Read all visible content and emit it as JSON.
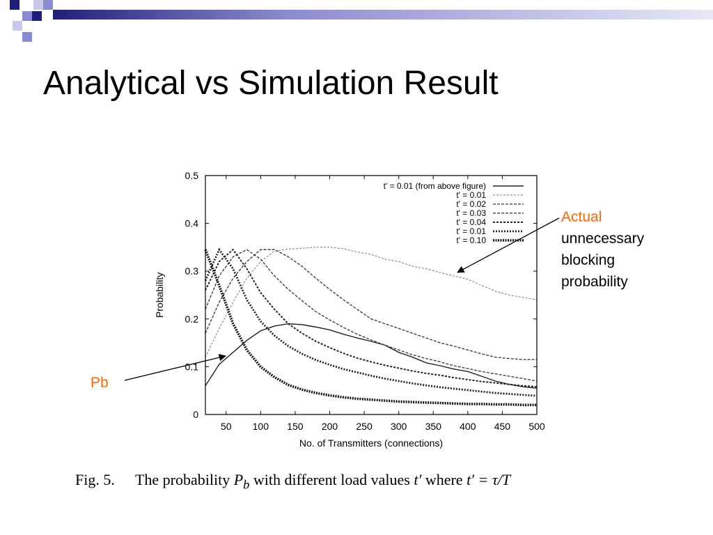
{
  "slide": {
    "title": "Analytical vs Simulation Result",
    "accent_colors": [
      "#1f1f7a",
      "#8a8ad0",
      "#c8c8e8",
      "#e8e8f6"
    ]
  },
  "annotations": {
    "actual_word": "Actual",
    "actual_rest": [
      "unnecessary",
      "blocking",
      "probability"
    ],
    "pb": "Pb",
    "accent_color": "#ff6600"
  },
  "caption": {
    "fig_label": "Fig. 5.",
    "text_before": "The probability",
    "symbol_p": "P",
    "symbol_sub": "b",
    "text_mid": "with different load values",
    "symbol_t": "t′",
    "text_where": "where",
    "equation": "t′ = τ/T"
  },
  "chart_data": {
    "type": "line",
    "title": "",
    "xlabel": "No. of Transmitters (connections)",
    "ylabel": "Probability",
    "xlim": [
      20,
      500
    ],
    "ylim": [
      0,
      0.5
    ],
    "xticks": [
      50,
      100,
      150,
      200,
      250,
      300,
      350,
      400,
      450,
      500
    ],
    "yticks": [
      0,
      0.1,
      0.2,
      0.3,
      0.4,
      0.5
    ],
    "ytick_labels": [
      "0",
      "0.1",
      "0.2",
      "0.3",
      "0.4",
      "0.5"
    ],
    "legend_position": "top-right",
    "series": [
      {
        "name": "t' = 0.01 (from above figure)",
        "style": "solid",
        "x": [
          20,
          40,
          60,
          80,
          100,
          120,
          140,
          160,
          180,
          200,
          220,
          240,
          260,
          280,
          300,
          320,
          340,
          360,
          380,
          400,
          420,
          440,
          460,
          480,
          500
        ],
        "y": [
          0.06,
          0.105,
          0.13,
          0.155,
          0.175,
          0.185,
          0.19,
          0.188,
          0.183,
          0.177,
          0.168,
          0.16,
          0.153,
          0.145,
          0.13,
          0.12,
          0.108,
          0.102,
          0.095,
          0.09,
          0.08,
          0.07,
          0.063,
          0.058,
          0.055
        ]
      },
      {
        "name": "t' = 0.01",
        "style": "dash-fine",
        "x": [
          20,
          40,
          60,
          80,
          100,
          120,
          140,
          160,
          180,
          200,
          220,
          240,
          260,
          280,
          300,
          320,
          340,
          360,
          380,
          400,
          420,
          440,
          460,
          480,
          500
        ],
        "y": [
          0.12,
          0.18,
          0.235,
          0.285,
          0.32,
          0.342,
          0.346,
          0.348,
          0.35,
          0.35,
          0.347,
          0.34,
          0.335,
          0.325,
          0.32,
          0.31,
          0.305,
          0.297,
          0.29,
          0.283,
          0.27,
          0.258,
          0.25,
          0.245,
          0.24
        ]
      },
      {
        "name": "t' = 0.02",
        "style": "dash",
        "x": [
          20,
          40,
          60,
          80,
          100,
          120,
          140,
          160,
          180,
          200,
          220,
          240,
          260,
          280,
          300,
          320,
          340,
          360,
          380,
          400,
          420,
          440,
          460,
          480,
          500
        ],
        "y": [
          0.17,
          0.235,
          0.285,
          0.32,
          0.345,
          0.345,
          0.33,
          0.31,
          0.285,
          0.262,
          0.24,
          0.22,
          0.2,
          0.19,
          0.18,
          0.17,
          0.16,
          0.15,
          0.143,
          0.135,
          0.127,
          0.12,
          0.117,
          0.115,
          0.115
        ]
      },
      {
        "name": "t' = 0.03",
        "style": "dash",
        "x": [
          20,
          40,
          60,
          80,
          100,
          120,
          140,
          160,
          180,
          200,
          220,
          240,
          260,
          280,
          300,
          320,
          340,
          360,
          380,
          400,
          420,
          440,
          460,
          480,
          500
        ],
        "y": [
          0.22,
          0.29,
          0.33,
          0.345,
          0.325,
          0.29,
          0.262,
          0.238,
          0.215,
          0.198,
          0.182,
          0.168,
          0.156,
          0.145,
          0.135,
          0.125,
          0.117,
          0.11,
          0.102,
          0.096,
          0.09,
          0.085,
          0.08,
          0.075,
          0.07
        ]
      },
      {
        "name": "t' = 0.04",
        "style": "dash-heavy",
        "x": [
          20,
          40,
          60,
          80,
          100,
          120,
          140,
          160,
          180,
          200,
          220,
          240,
          260,
          280,
          300,
          320,
          340,
          360,
          380,
          400,
          420,
          440,
          460,
          480,
          500
        ],
        "y": [
          0.26,
          0.32,
          0.345,
          0.305,
          0.255,
          0.22,
          0.19,
          0.17,
          0.153,
          0.14,
          0.128,
          0.118,
          0.11,
          0.103,
          0.097,
          0.091,
          0.086,
          0.082,
          0.077,
          0.073,
          0.069,
          0.066,
          0.063,
          0.06,
          0.058
        ]
      },
      {
        "name": "t' = 0.01",
        "style": "dot-heavy",
        "x": [
          20,
          40,
          60,
          80,
          100,
          120,
          140,
          160,
          180,
          200,
          220,
          240,
          260,
          280,
          300,
          320,
          340,
          360,
          380,
          400,
          420,
          440,
          460,
          480,
          500
        ],
        "y": [
          0.28,
          0.345,
          0.305,
          0.24,
          0.195,
          0.165,
          0.143,
          0.127,
          0.114,
          0.104,
          0.095,
          0.088,
          0.081,
          0.075,
          0.07,
          0.065,
          0.061,
          0.057,
          0.054,
          0.051,
          0.048,
          0.045,
          0.043,
          0.041,
          0.039
        ]
      },
      {
        "name": "t' = 0.10",
        "style": "dot-bold",
        "x": [
          20,
          40,
          60,
          80,
          100,
          120,
          140,
          160,
          180,
          200,
          220,
          240,
          260,
          280,
          300,
          320,
          340,
          360,
          380,
          400,
          420,
          440,
          460,
          480,
          500
        ],
        "y": [
          0.345,
          0.27,
          0.19,
          0.135,
          0.1,
          0.078,
          0.062,
          0.052,
          0.045,
          0.04,
          0.036,
          0.033,
          0.031,
          0.029,
          0.027,
          0.026,
          0.025,
          0.024,
          0.023,
          0.022,
          0.022,
          0.021,
          0.021,
          0.02,
          0.02
        ]
      }
    ]
  }
}
